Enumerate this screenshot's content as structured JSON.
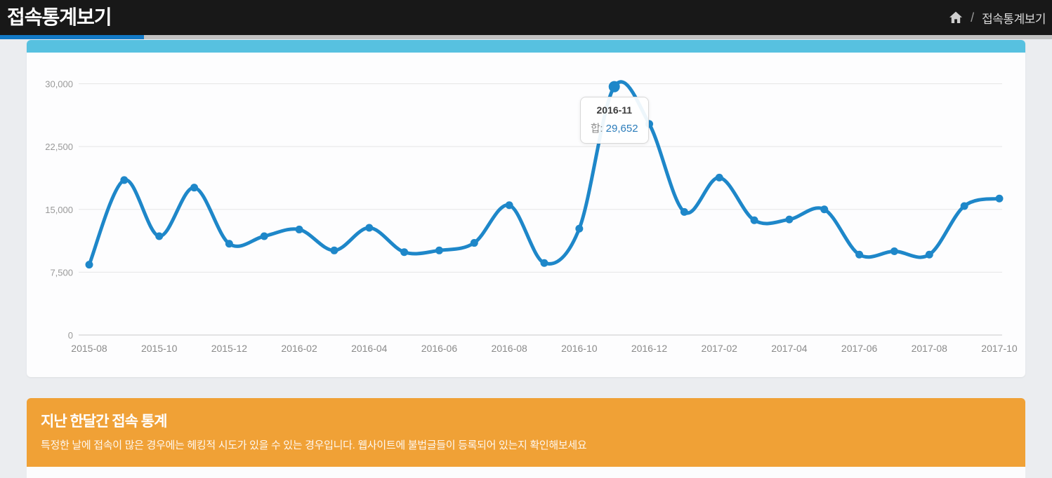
{
  "header": {
    "title": "접속통계보기",
    "breadcrumb": {
      "home_icon": "home-icon",
      "separator": "/",
      "current": "접속통계보기"
    }
  },
  "chart_data": {
    "type": "line",
    "title": "",
    "xlabel": "",
    "ylabel": "",
    "x": [
      "2015-08",
      "2015-09",
      "2015-10",
      "2015-11",
      "2015-12",
      "2016-01",
      "2016-02",
      "2016-03",
      "2016-04",
      "2016-05",
      "2016-06",
      "2016-07",
      "2016-08",
      "2016-09",
      "2016-10",
      "2016-11",
      "2016-12",
      "2017-01",
      "2017-02",
      "2017-03",
      "2017-04",
      "2017-05",
      "2017-06",
      "2017-07",
      "2017-08",
      "2017-09",
      "2017-10"
    ],
    "series": [
      {
        "name": "합",
        "color": "#1e87c9",
        "values": [
          8400,
          18500,
          11800,
          17600,
          10900,
          11800,
          12600,
          10100,
          12800,
          9900,
          10100,
          11000,
          15500,
          8600,
          12700,
          29652,
          25200,
          14700,
          18800,
          13700,
          13800,
          15000,
          9600,
          10000,
          9600,
          15400,
          16300
        ]
      }
    ],
    "ylim": [
      0,
      30000
    ],
    "yticks": [
      0,
      7500,
      15000,
      22500,
      30000
    ],
    "ytick_labels": [
      "0",
      "7,500",
      "15,000",
      "22,500",
      "30,000"
    ],
    "xtick_every": 2,
    "grid": true,
    "legend_position": "none",
    "tooltip": {
      "title": "2016-11",
      "label": "합",
      "separator": ": ",
      "value": "29,652",
      "value_num": 29652,
      "point_index": 15
    }
  },
  "stats_banner": {
    "title": "지난 한달간 접속 통계",
    "description": "특정한 날에 접속이 많은 경우에는 헤킹적 시도가 있을 수 있는 경우입니다. 웹사이트에 불법글들이 등록되어 있는지 확인해보세요"
  },
  "colors": {
    "header_bg": "#181818",
    "accent_blue": "#1279c6",
    "tab_strip_gray": "#c2c2c2",
    "panel_bar_blue": "#57c1e0",
    "line_blue": "#1e87c9",
    "banner_orange": "#f0a136",
    "grid_line": "#e6e6e6",
    "axis_line": "#c9c9c9"
  }
}
